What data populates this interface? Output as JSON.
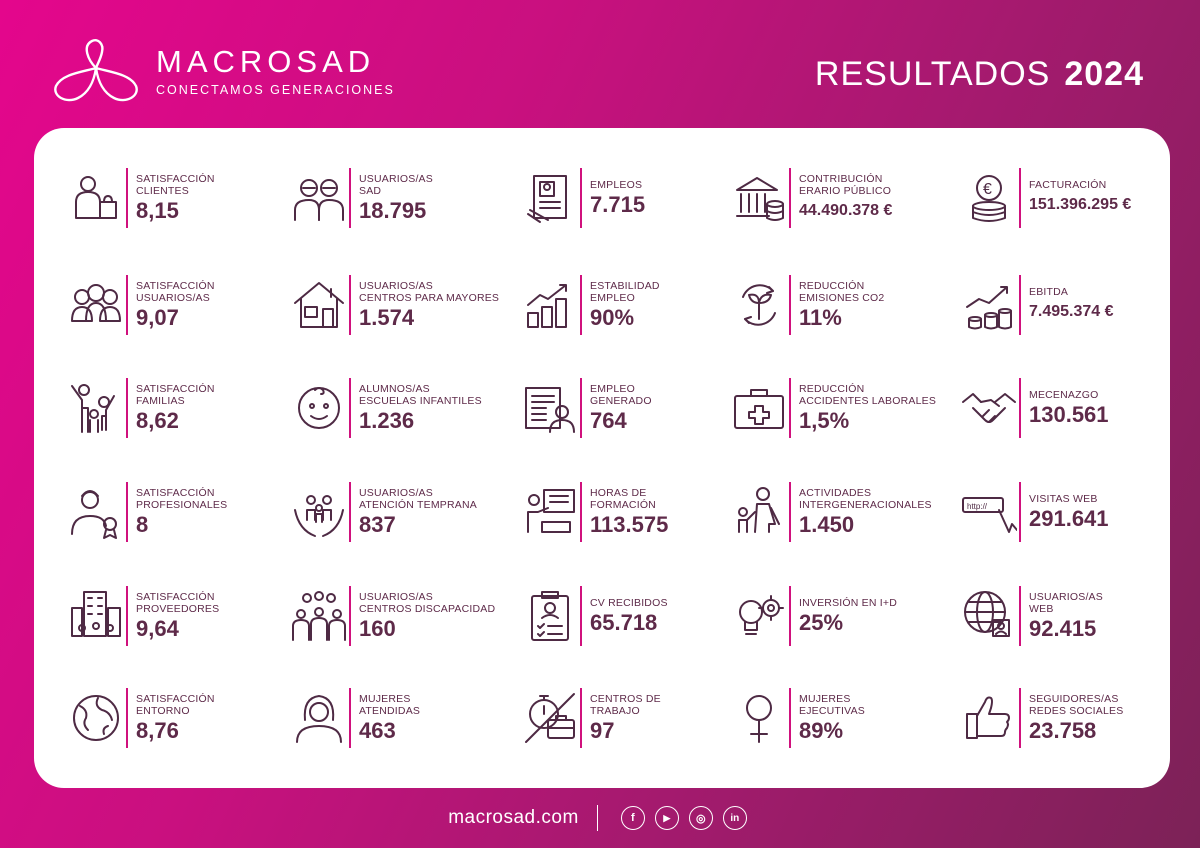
{
  "header": {
    "brand_name": "MACROSAD",
    "brand_tagline": "CONECTAMOS GENERACIONES",
    "title": "RESULTADOS",
    "year": "2024"
  },
  "stats": [
    {
      "label": "SATISFACCIÓN\nCLIENTES",
      "value": "8,15",
      "icon": "shopper-icon"
    },
    {
      "label": "USUARIOS/AS\nSAD",
      "value": "18.795",
      "icon": "elderly-couple-icon"
    },
    {
      "label": "EMPLEOS",
      "value": "7.715",
      "icon": "employee-file-icon"
    },
    {
      "label": "CONTRIBUCIÓN\nERARIO PÚBLICO",
      "value": "44.490.378 €",
      "icon": "bank-coins-icon"
    },
    {
      "label": "FACTURACIÓN",
      "value": "151.396.295 €",
      "icon": "euro-coins-icon"
    },
    {
      "label": "SATISFACCIÓN\nUSUARIOS/AS",
      "value": "9,07",
      "icon": "people-group-icon"
    },
    {
      "label": "USUARIOS/AS\nCENTROS PARA MAYORES",
      "value": "1.574",
      "icon": "house-icon"
    },
    {
      "label": "ESTABILIDAD\nEMPLEO",
      "value": "90%",
      "icon": "growth-chart-icon"
    },
    {
      "label": "REDUCCIÓN\nEMISIONES CO2",
      "value": "11%",
      "icon": "eco-leaf-icon"
    },
    {
      "label": "EBITDA",
      "value": "7.495.374 €",
      "icon": "coin-chart-icon"
    },
    {
      "label": "SATISFACCIÓN\nFAMILIAS",
      "value": "8,62",
      "icon": "family-icon"
    },
    {
      "label": "ALUMNOS/AS\nESCUELAS INFANTILES",
      "value": "1.236",
      "icon": "baby-face-icon"
    },
    {
      "label": "EMPLEO\nGENERADO",
      "value": "764",
      "icon": "worker-document-icon"
    },
    {
      "label": "REDUCCIÓN\nACCIDENTES LABORALES",
      "value": "1,5%",
      "icon": "first-aid-kit-icon"
    },
    {
      "label": "MECENAZGO",
      "value": "130.561",
      "icon": "handshake-icon"
    },
    {
      "label": "SATISFACCIÓN\nPROFESIONALES",
      "value": "8",
      "icon": "professional-badge-icon"
    },
    {
      "label": "USUARIOS/AS\nATENCIÓN TEMPRANA",
      "value": "837",
      "icon": "hands-family-icon"
    },
    {
      "label": "HORAS DE\nFORMACIÓN",
      "value": "113.575",
      "icon": "training-board-icon"
    },
    {
      "label": "ACTIVIDADES\nINTERGENERACIONALES",
      "value": "1.450",
      "icon": "grandparent-child-icon"
    },
    {
      "label": "VISITAS WEB",
      "value": "291.641",
      "icon": "web-cursor-icon"
    },
    {
      "label": "SATISFACCIÓN\nPROVEEDORES",
      "value": "9,64",
      "icon": "building-people-icon"
    },
    {
      "label": "USUARIOS/AS\nCENTROS DISCAPACIDAD",
      "value": "160",
      "icon": "crowd-icon"
    },
    {
      "label": "CV RECIBIDOS",
      "value": "65.718",
      "icon": "cv-clipboard-icon"
    },
    {
      "label": "INVERSIÓN EN I+D",
      "value": "25%",
      "icon": "innovation-bulb-icon"
    },
    {
      "label": "USUARIOS/AS\nWEB",
      "value": "92.415",
      "icon": "globe-user-icon"
    },
    {
      "label": "SATISFACCIÓN\nENTORNO",
      "value": "8,76",
      "icon": "earth-icon"
    },
    {
      "label": "MUJERES\nATENDIDAS",
      "value": "463",
      "icon": "woman-icon"
    },
    {
      "label": "CENTROS DE\nTRABAJO",
      "value": "97",
      "icon": "stopwatch-briefcase-icon"
    },
    {
      "label": "MUJERES\nEJECUTIVAS",
      "value": "89%",
      "icon": "female-symbol-icon"
    },
    {
      "label": "SEGUIDORES/AS\nREDES SOCIALES",
      "value": "23.758",
      "icon": "thumbs-up-icon"
    }
  ],
  "footer": {
    "url": "macrosad.com",
    "social": [
      {
        "name": "facebook-icon",
        "glyph": "f"
      },
      {
        "name": "youtube-icon",
        "glyph": "▶"
      },
      {
        "name": "instagram-icon",
        "glyph": "◎"
      },
      {
        "name": "linkedin-icon",
        "glyph": "in"
      }
    ]
  }
}
